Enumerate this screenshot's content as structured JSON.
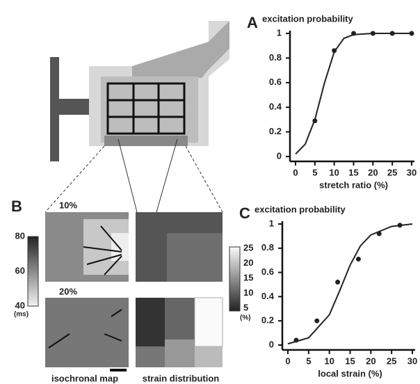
{
  "chart_data": [
    {
      "type": "line",
      "panel_label": "A",
      "y_label": "excitation probability",
      "x_label": "stretch ratio (%)",
      "xlim": [
        0,
        30
      ],
      "xticks": [
        0,
        5,
        10,
        15,
        20,
        25,
        30
      ],
      "ylim": [
        0,
        1
      ],
      "yticks": [
        0,
        0.2,
        0.4,
        0.6,
        0.8,
        1
      ],
      "series": [
        {
          "mode": "markers",
          "color": "#222",
          "x": [
            5,
            10,
            15,
            20,
            25,
            30
          ],
          "values": [
            0.29,
            0.86,
            1,
            1,
            1,
            1
          ]
        },
        {
          "mode": "line",
          "color": "#222",
          "x": [
            0,
            2.5,
            5,
            7.5,
            10,
            12.5,
            15,
            20,
            25,
            30
          ],
          "values": [
            0.02,
            0.1,
            0.3,
            0.6,
            0.85,
            0.96,
            0.99,
            1,
            1,
            1
          ]
        }
      ]
    },
    {
      "type": "line",
      "panel_label": "C",
      "y_label": "excitation probability",
      "x_label": "local strain (%)",
      "xlim": [
        0,
        30
      ],
      "xticks": [
        0,
        5,
        10,
        15,
        20,
        25,
        30
      ],
      "ylim": [
        0,
        1
      ],
      "yticks": [
        0,
        0.2,
        0.4,
        0.6,
        0.8,
        1
      ],
      "series": [
        {
          "mode": "markers",
          "color": "#222",
          "x": [
            2,
            7,
            12,
            17,
            22,
            27
          ],
          "values": [
            0.04,
            0.2,
            0.52,
            0.71,
            0.92,
            0.99
          ]
        },
        {
          "mode": "line",
          "color": "#222",
          "x": [
            0,
            5,
            10,
            12.5,
            15,
            17.5,
            20,
            25,
            30
          ],
          "values": [
            0.01,
            0.06,
            0.25,
            0.45,
            0.66,
            0.82,
            0.91,
            0.98,
            1
          ]
        }
      ]
    }
  ],
  "panel_b": {
    "label": "B",
    "map_labels": [
      "10%",
      "20%"
    ],
    "captions": [
      "isochronal map",
      "strain distribution"
    ],
    "time_scale": {
      "ticks": [
        80,
        60,
        40
      ],
      "unit": "(ms)"
    },
    "strain_scale": {
      "ticks": [
        25,
        20,
        15,
        10,
        5
      ],
      "unit": "(%)"
    }
  }
}
